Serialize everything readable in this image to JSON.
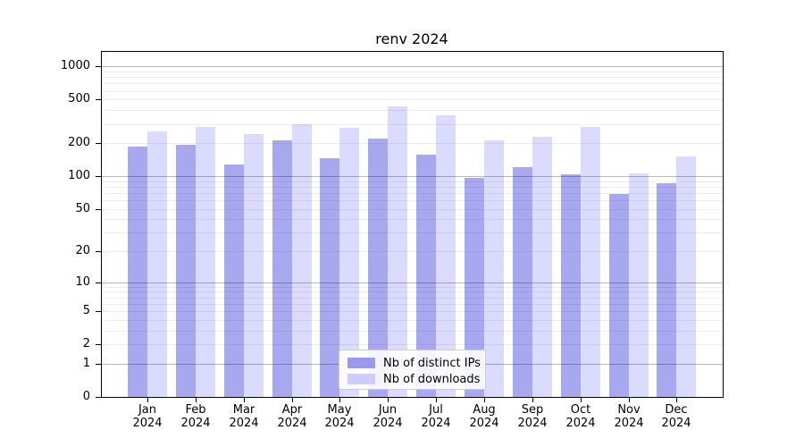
{
  "chart_data": {
    "type": "bar",
    "title": "renv 2024",
    "categories": [
      "Jan 2024",
      "Feb 2024",
      "Mar 2024",
      "Apr 2024",
      "May 2024",
      "Jun 2024",
      "Jul 2024",
      "Aug 2024",
      "Sep 2024",
      "Oct 2024",
      "Nov 2024",
      "Dec 2024"
    ],
    "months": [
      "Jan",
      "Feb",
      "Mar",
      "Apr",
      "May",
      "Jun",
      "Jul",
      "Aug",
      "Sep",
      "Oct",
      "Nov",
      "Dec"
    ],
    "year": "2024",
    "series": [
      {
        "name": "Nb of distinct IPs",
        "color": "#9999ee",
        "values": [
          188,
          194,
          128,
          214,
          146,
          221,
          158,
          97,
          122,
          105,
          69,
          86
        ]
      },
      {
        "name": "Nb of downloads",
        "color": "#ccccff",
        "values": [
          257,
          283,
          242,
          297,
          279,
          435,
          363,
          212,
          230,
          281,
          107,
          151
        ]
      }
    ],
    "xlabel": "",
    "ylabel": "",
    "yscale": "symlog-log1p",
    "y_ticks": [
      1000,
      500,
      200,
      100,
      50,
      20,
      10,
      5,
      2,
      1,
      0
    ],
    "ylim": [
      0,
      1360
    ],
    "grid": "on",
    "legend_position": "bottom-center-inside"
  }
}
